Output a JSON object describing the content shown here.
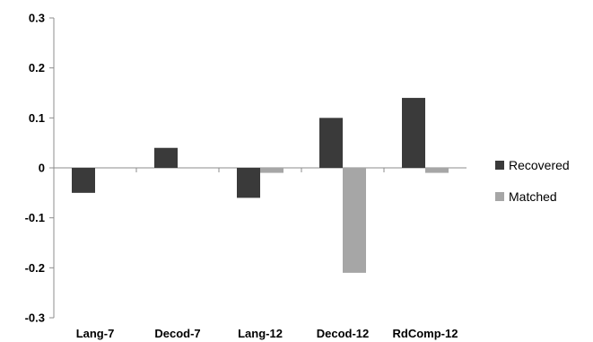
{
  "chart_data": {
    "type": "bar",
    "categories": [
      "Lang-7",
      "Decod-7",
      "Lang-12",
      "Decod-12",
      "RdComp-12"
    ],
    "series": [
      {
        "name": "Recovered",
        "values": [
          -0.05,
          0.04,
          -0.06,
          0.1,
          0.14
        ],
        "color": "#3a3a3a"
      },
      {
        "name": "Matched",
        "values": [
          0.0,
          0.0,
          -0.01,
          -0.21,
          -0.01
        ],
        "color": "#a6a6a6"
      }
    ],
    "ylim": [
      -0.3,
      0.3
    ],
    "yticks": [
      "0.3",
      "0.2",
      "0.1",
      "0",
      "-0.1",
      "-0.2",
      "-0.3"
    ],
    "ytick_values": [
      0.3,
      0.2,
      0.1,
      0,
      -0.1,
      -0.2,
      -0.3
    ],
    "grid": false,
    "legend": "right",
    "title": "",
    "xlabel": "",
    "ylabel": ""
  }
}
